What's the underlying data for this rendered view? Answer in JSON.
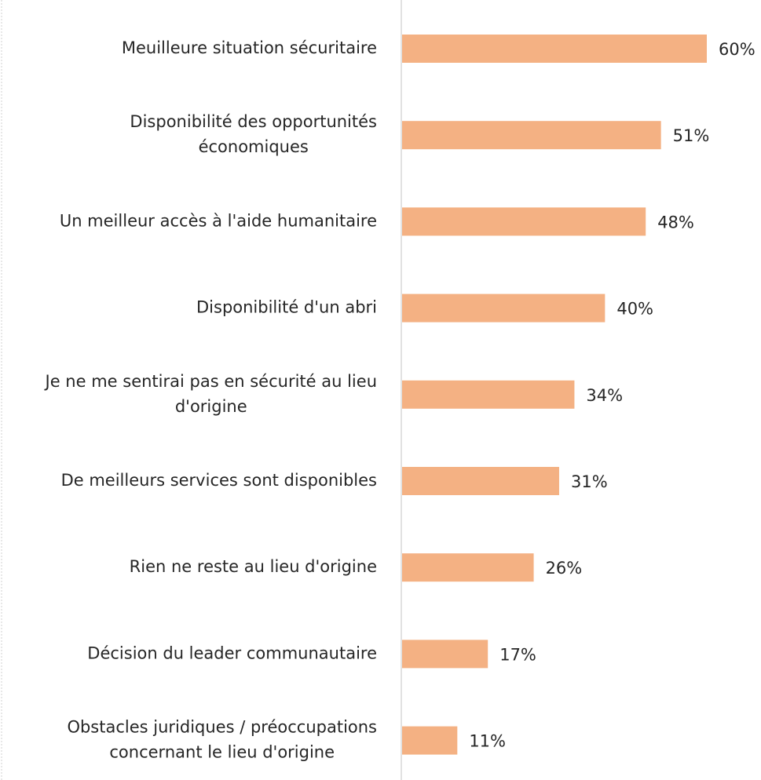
{
  "chart_data": {
    "type": "bar",
    "orientation": "horizontal",
    "categories": [
      "Meuilleure situation sécuritaire",
      "Disponibilité des opportunités\néconomiques",
      "Un meilleur accès à l'aide humanitaire",
      "Disponibilité d'un abri",
      "Je ne me sentirai pas en sécurité au lieu\nd'origine",
      "De meilleurs services sont disponibles",
      "Rien ne reste au lieu d'origine",
      "Décision du leader communautaire",
      "Obstacles juridiques / préoccupations\nconcernant le lieu d'origine"
    ],
    "values": [
      60,
      51,
      48,
      40,
      34,
      31,
      26,
      17,
      11
    ],
    "value_labels": [
      "60%",
      "51%",
      "48%",
      "40%",
      "34%",
      "31%",
      "26%",
      "17%",
      "11%"
    ],
    "color": "#f4b183"
  }
}
